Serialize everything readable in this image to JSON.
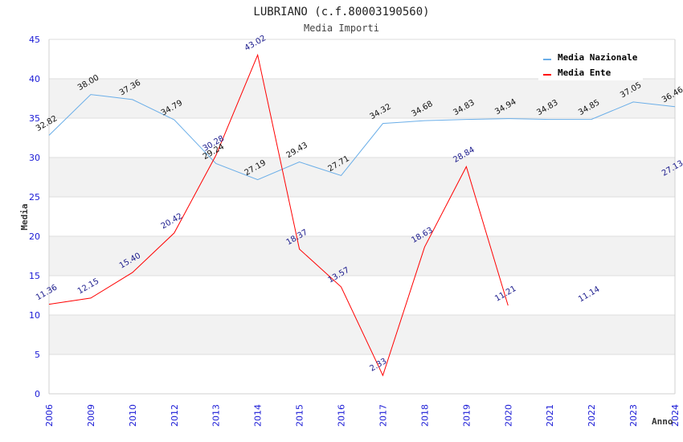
{
  "chart_data": {
    "type": "line",
    "title": "LUBRIANO (c.f.80003190560)",
    "subtitle": "Media Importi",
    "xlabel": "Anno",
    "ylabel": "Media",
    "ylim": [
      0,
      45
    ],
    "yticks": [
      0,
      5,
      10,
      15,
      20,
      25,
      30,
      35,
      40,
      45
    ],
    "grid": true,
    "legend_position": "top-right",
    "categories": [
      "2006",
      "2009",
      "2010",
      "2012",
      "2013",
      "2014",
      "2015",
      "2016",
      "2017",
      "2018",
      "2019",
      "2020",
      "2021",
      "2022",
      "2023",
      "2024"
    ],
    "series": [
      {
        "name": "Media Nazionale",
        "color": "#6aaee8",
        "label_color": "#111111",
        "values": [
          32.82,
          38.0,
          37.36,
          34.79,
          29.24,
          27.19,
          29.43,
          27.71,
          34.32,
          34.68,
          34.83,
          34.94,
          34.83,
          34.85,
          37.05,
          36.46
        ],
        "labels": [
          "32.82",
          "38.00",
          "37.36",
          "34.79",
          "29.24",
          "27.19",
          "29.43",
          "27.71",
          "34.32",
          "34.68",
          "34.83",
          "34.94",
          "34.83",
          "34.85",
          "37.05",
          "36.46"
        ]
      },
      {
        "name": "Media Ente",
        "color": "#ff0000",
        "label_color": "#1a1a8c",
        "values": [
          11.36,
          12.15,
          15.4,
          20.42,
          30.28,
          43.02,
          18.37,
          13.57,
          2.33,
          18.63,
          28.84,
          11.21,
          null,
          11.14,
          null,
          27.13
        ],
        "labels": [
          "11.36",
          "12.15",
          "15.40",
          "20.42",
          "30.28",
          "43.02",
          "18.37",
          "13.57",
          "2.33",
          "18.63",
          "28.84",
          "11.21",
          null,
          "11.14",
          null,
          "27.13"
        ]
      }
    ]
  }
}
